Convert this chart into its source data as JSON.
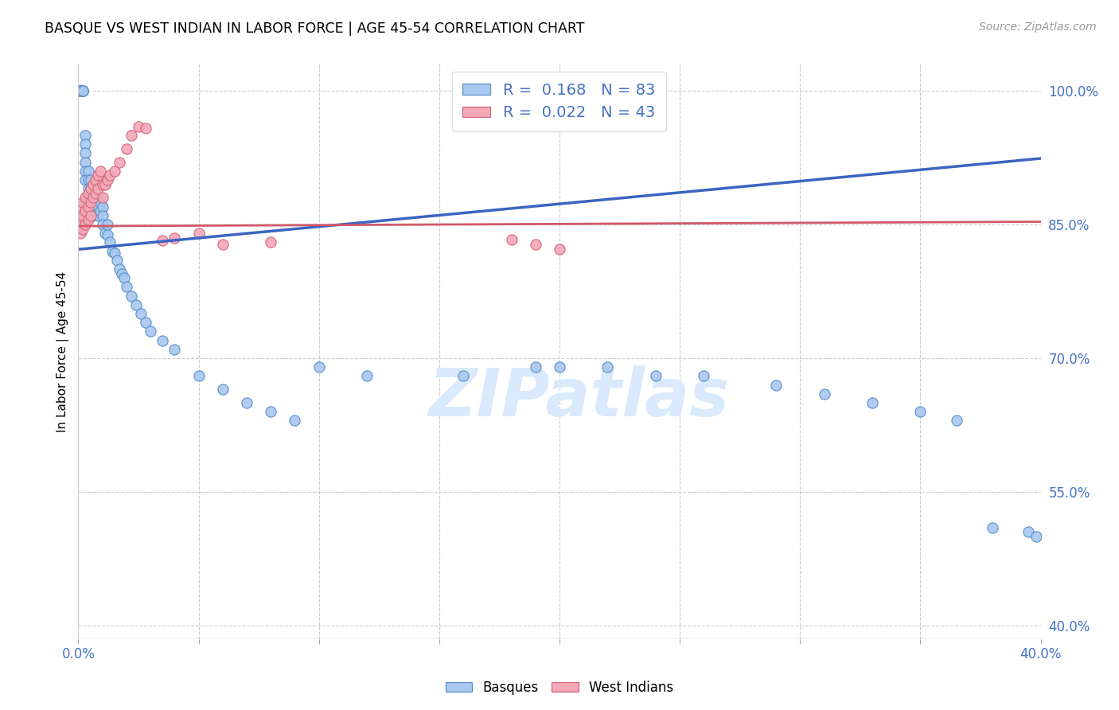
{
  "title": "BASQUE VS WEST INDIAN IN LABOR FORCE | AGE 45-54 CORRELATION CHART",
  "source": "Source: ZipAtlas.com",
  "ylabel": "In Labor Force | Age 45-54",
  "ytick_labels": [
    "100.0%",
    "85.0%",
    "70.0%",
    "55.0%",
    "40.0%"
  ],
  "ytick_values": [
    1.0,
    0.85,
    0.7,
    0.55,
    0.4
  ],
  "xmin": 0.0,
  "xmax": 0.4,
  "ymin": 0.385,
  "ymax": 1.03,
  "R_basque": 0.168,
  "N_basque": 83,
  "R_west_indian": 0.022,
  "N_west_indian": 43,
  "color_basque": "#A8C8F0",
  "color_west_indian": "#F4A8B8",
  "color_edge_basque": "#5B8FC9",
  "color_edge_west_indian": "#D06878",
  "color_line_basque": "#3B65C0",
  "color_line_west_indian": "#D05868",
  "watermark": "ZIPatlas",
  "basque_trendline_x0": 0.0,
  "basque_trendline_y0": 0.822,
  "basque_trendline_x1": 0.4,
  "basque_trendline_y1": 0.924,
  "wi_trendline_x0": 0.0,
  "wi_trendline_y0": 0.848,
  "wi_trendline_x1": 0.4,
  "wi_trendline_y1": 0.853,
  "basque_x": [
    0.0,
    0.0,
    0.0,
    0.001,
    0.001,
    0.001,
    0.001,
    0.001,
    0.002,
    0.002,
    0.002,
    0.002,
    0.002,
    0.002,
    0.003,
    0.003,
    0.003,
    0.003,
    0.003,
    0.003,
    0.004,
    0.004,
    0.004,
    0.004,
    0.005,
    0.005,
    0.005,
    0.005,
    0.005,
    0.006,
    0.006,
    0.006,
    0.006,
    0.007,
    0.007,
    0.007,
    0.008,
    0.008,
    0.008,
    0.009,
    0.009,
    0.01,
    0.01,
    0.01,
    0.011,
    0.012,
    0.012,
    0.013,
    0.014,
    0.015,
    0.016,
    0.017,
    0.018,
    0.019,
    0.02,
    0.022,
    0.024,
    0.026,
    0.028,
    0.03,
    0.035,
    0.04,
    0.05,
    0.06,
    0.07,
    0.08,
    0.09,
    0.1,
    0.12,
    0.16,
    0.19,
    0.2,
    0.22,
    0.24,
    0.26,
    0.29,
    0.31,
    0.33,
    0.35,
    0.365,
    0.38,
    0.395,
    0.398
  ],
  "basque_y": [
    1.0,
    1.0,
    1.0,
    1.0,
    1.0,
    1.0,
    1.0,
    1.0,
    1.0,
    1.0,
    1.0,
    1.0,
    1.0,
    1.0,
    0.95,
    0.94,
    0.93,
    0.92,
    0.91,
    0.9,
    0.91,
    0.9,
    0.89,
    0.88,
    0.9,
    0.89,
    0.88,
    0.87,
    0.86,
    0.895,
    0.88,
    0.87,
    0.86,
    0.885,
    0.875,
    0.865,
    0.88,
    0.87,
    0.86,
    0.875,
    0.865,
    0.87,
    0.86,
    0.85,
    0.84,
    0.85,
    0.838,
    0.83,
    0.82,
    0.818,
    0.81,
    0.8,
    0.795,
    0.79,
    0.78,
    0.77,
    0.76,
    0.75,
    0.74,
    0.73,
    0.72,
    0.71,
    0.68,
    0.665,
    0.65,
    0.64,
    0.63,
    0.69,
    0.68,
    0.68,
    0.69,
    0.69,
    0.69,
    0.68,
    0.68,
    0.67,
    0.66,
    0.65,
    0.64,
    0.63,
    0.51,
    0.505,
    0.5
  ],
  "wi_x": [
    0.0,
    0.0,
    0.001,
    0.001,
    0.001,
    0.002,
    0.002,
    0.002,
    0.003,
    0.003,
    0.003,
    0.004,
    0.004,
    0.004,
    0.005,
    0.005,
    0.005,
    0.006,
    0.006,
    0.007,
    0.007,
    0.008,
    0.008,
    0.009,
    0.01,
    0.01,
    0.011,
    0.012,
    0.013,
    0.015,
    0.017,
    0.02,
    0.022,
    0.025,
    0.028,
    0.035,
    0.04,
    0.05,
    0.06,
    0.08,
    0.18,
    0.19,
    0.2
  ],
  "wi_y": [
    0.86,
    0.848,
    0.87,
    0.855,
    0.84,
    0.875,
    0.86,
    0.845,
    0.88,
    0.865,
    0.85,
    0.885,
    0.87,
    0.855,
    0.89,
    0.875,
    0.86,
    0.895,
    0.88,
    0.9,
    0.885,
    0.905,
    0.89,
    0.91,
    0.895,
    0.88,
    0.895,
    0.9,
    0.905,
    0.91,
    0.92,
    0.935,
    0.95,
    0.96,
    0.958,
    0.832,
    0.835,
    0.84,
    0.828,
    0.83,
    0.833,
    0.828,
    0.822
  ]
}
